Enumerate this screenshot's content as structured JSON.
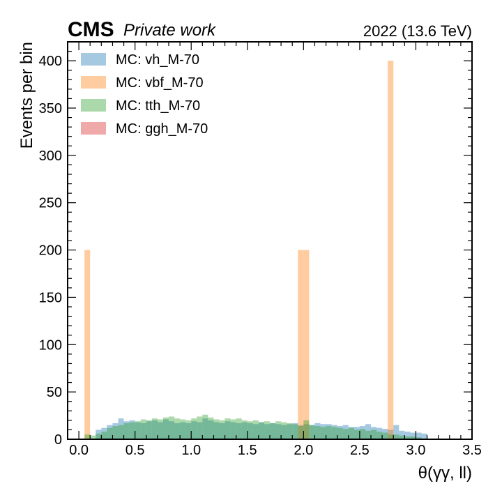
{
  "header": {
    "experiment": "CMS",
    "status": "Private work",
    "lumi": "2022 (13.6 TeV)"
  },
  "chart_data": {
    "type": "bar",
    "xlabel": "θ(γγ, ll)",
    "ylabel": "Events per bin",
    "xlim": [
      -0.1,
      3.5
    ],
    "ylim": [
      0,
      420
    ],
    "x_ticks": [
      "0.0",
      "0.5",
      "1.0",
      "1.5",
      "2.0",
      "2.5",
      "3.0",
      "3.5"
    ],
    "y_ticks": [
      "0",
      "50",
      "100",
      "150",
      "200",
      "250",
      "300",
      "350",
      "400"
    ],
    "bin_width": 0.05,
    "legend_position": "top-left",
    "colors": {
      "vh": "#1f77b4",
      "vbf": "#ff7f0e",
      "tth": "#2ca02c",
      "ggh": "#d62728"
    },
    "series": [
      {
        "name": "MC: vh_M-70",
        "key": "vh",
        "bins": [
          [
            0.15,
            10
          ],
          [
            0.2,
            12
          ],
          [
            0.25,
            15
          ],
          [
            0.3,
            17
          ],
          [
            0.35,
            22
          ],
          [
            0.4,
            19
          ],
          [
            0.45,
            20
          ],
          [
            0.5,
            18
          ],
          [
            0.55,
            17
          ],
          [
            0.6,
            19
          ],
          [
            0.65,
            20
          ],
          [
            0.7,
            18
          ],
          [
            0.75,
            21
          ],
          [
            0.8,
            19
          ],
          [
            0.85,
            17
          ],
          [
            0.9,
            18
          ],
          [
            0.95,
            17
          ],
          [
            1.0,
            19
          ],
          [
            1.05,
            18
          ],
          [
            1.1,
            22
          ],
          [
            1.15,
            20
          ],
          [
            1.2,
            18
          ],
          [
            1.25,
            17
          ],
          [
            1.3,
            19
          ],
          [
            1.35,
            18
          ],
          [
            1.4,
            17
          ],
          [
            1.45,
            18
          ],
          [
            1.5,
            17
          ],
          [
            1.55,
            16
          ],
          [
            1.6,
            18
          ],
          [
            1.65,
            16
          ],
          [
            1.7,
            17
          ],
          [
            1.75,
            16
          ],
          [
            1.8,
            15
          ],
          [
            1.85,
            16
          ],
          [
            1.9,
            17
          ],
          [
            1.95,
            15
          ],
          [
            2.0,
            16
          ],
          [
            2.05,
            15
          ],
          [
            2.1,
            17
          ],
          [
            2.15,
            16
          ],
          [
            2.2,
            16
          ],
          [
            2.25,
            15
          ],
          [
            2.3,
            14
          ],
          [
            2.35,
            15
          ],
          [
            2.4,
            13
          ],
          [
            2.45,
            13
          ],
          [
            2.5,
            14
          ],
          [
            2.55,
            16
          ],
          [
            2.6,
            13
          ],
          [
            2.65,
            12
          ],
          [
            2.7,
            11
          ],
          [
            2.75,
            10
          ],
          [
            2.8,
            15
          ],
          [
            2.85,
            9
          ],
          [
            2.9,
            8
          ],
          [
            2.95,
            7
          ],
          [
            3.0,
            7
          ],
          [
            3.05,
            6
          ]
        ]
      },
      {
        "name": "MC: vbf_M-70",
        "key": "vbf",
        "bins": [
          [
            0.05,
            200
          ],
          [
            1.95,
            200
          ],
          [
            2.0,
            200
          ],
          [
            2.75,
            400
          ]
        ]
      },
      {
        "name": "MC: tth_M-70",
        "key": "tth",
        "bins": [
          [
            0.05,
            5
          ],
          [
            0.1,
            4
          ],
          [
            0.15,
            6
          ],
          [
            0.2,
            8
          ],
          [
            0.25,
            12
          ],
          [
            0.3,
            14
          ],
          [
            0.35,
            15
          ],
          [
            0.4,
            17
          ],
          [
            0.45,
            18
          ],
          [
            0.5,
            19
          ],
          [
            0.55,
            21
          ],
          [
            0.6,
            20
          ],
          [
            0.65,
            22
          ],
          [
            0.7,
            21
          ],
          [
            0.75,
            23
          ],
          [
            0.8,
            24
          ],
          [
            0.85,
            22
          ],
          [
            0.9,
            21
          ],
          [
            0.95,
            20
          ],
          [
            1.0,
            22
          ],
          [
            1.05,
            24
          ],
          [
            1.1,
            26
          ],
          [
            1.15,
            23
          ],
          [
            1.2,
            21
          ],
          [
            1.25,
            20
          ],
          [
            1.3,
            22
          ],
          [
            1.35,
            21
          ],
          [
            1.4,
            22
          ],
          [
            1.45,
            20
          ],
          [
            1.5,
            19
          ],
          [
            1.55,
            20
          ],
          [
            1.6,
            18
          ],
          [
            1.65,
            19
          ],
          [
            1.7,
            17
          ],
          [
            1.75,
            19
          ],
          [
            1.8,
            18
          ],
          [
            1.85,
            17
          ],
          [
            1.9,
            16
          ],
          [
            1.95,
            14
          ],
          [
            2.0,
            20
          ],
          [
            2.05,
            15
          ],
          [
            2.1,
            14
          ],
          [
            2.15,
            13
          ],
          [
            2.2,
            14
          ],
          [
            2.25,
            13
          ],
          [
            2.3,
            12
          ],
          [
            2.35,
            11
          ],
          [
            2.4,
            12
          ],
          [
            2.45,
            10
          ],
          [
            2.5,
            11
          ],
          [
            2.55,
            9
          ],
          [
            2.6,
            10
          ],
          [
            2.65,
            8
          ],
          [
            2.7,
            7
          ],
          [
            2.75,
            5
          ],
          [
            2.8,
            5
          ],
          [
            2.85,
            4
          ],
          [
            2.9,
            3
          ],
          [
            2.95,
            3
          ],
          [
            3.0,
            2
          ]
        ]
      },
      {
        "name": "MC: ggh_M-70",
        "key": "ggh",
        "bins": []
      }
    ]
  }
}
